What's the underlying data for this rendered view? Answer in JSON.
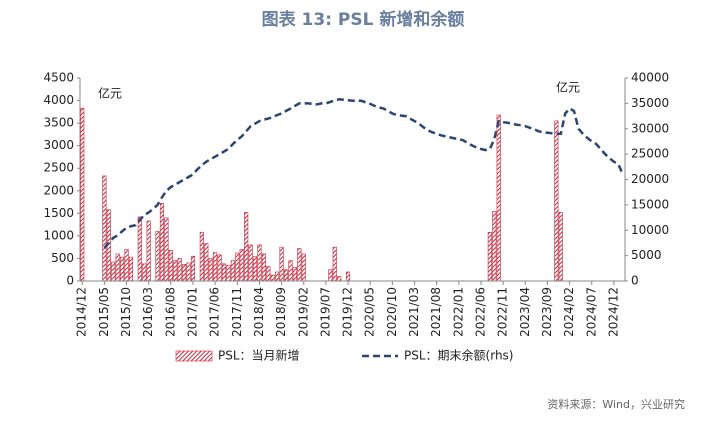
{
  "chart_data": {
    "type": "bar_line",
    "title": "图表 13: PSL 新增和余额",
    "source": "资料来源：Wind，兴业研究",
    "annotations": [
      "亿元",
      "亿元"
    ],
    "categories": [
      "2014/12",
      null,
      null,
      null,
      null,
      "2015/05",
      null,
      null,
      null,
      null,
      "2015/10",
      null,
      null,
      null,
      null,
      "2016/03",
      null,
      null,
      null,
      null,
      "2016/08",
      null,
      null,
      null,
      null,
      "2017/01",
      null,
      null,
      null,
      null,
      "2017/06",
      null,
      null,
      null,
      null,
      "2017/11",
      null,
      null,
      null,
      null,
      "2018/04",
      null,
      null,
      null,
      null,
      "2018/09",
      null,
      null,
      null,
      null,
      "2019/02",
      null,
      null,
      null,
      null,
      "2019/07",
      null,
      null,
      null,
      null,
      "2019/12",
      null,
      null,
      null,
      null,
      "2020/05",
      null,
      null,
      null,
      null,
      "2020/10",
      null,
      null,
      null,
      null,
      "2021/03",
      null,
      null,
      null,
      null,
      "2021/08",
      null,
      null,
      null,
      null,
      "2022/01",
      null,
      null,
      null,
      null,
      "2022/06",
      null,
      null,
      null,
      null,
      "2022/11",
      null,
      null,
      null,
      null,
      "2023/04",
      null,
      null,
      null,
      null,
      "2023/09",
      null,
      null,
      null,
      null,
      "2024/02",
      null,
      null,
      null,
      null,
      "2024/07",
      null,
      null,
      null,
      null,
      "2024/12",
      null,
      null
    ],
    "series": [
      {
        "name": "PSL：当月新增",
        "type": "bar",
        "color": "#c8283c",
        "values": [
          3830,
          0,
          0,
          0,
          0,
          2330,
          1580,
          420,
          600,
          530,
          700,
          530,
          0,
          1420,
          380,
          1330,
          0,
          1100,
          1720,
          1400,
          680,
          450,
          500,
          370,
          400,
          550,
          0,
          1080,
          830,
          500,
          630,
          580,
          380,
          350,
          450,
          620,
          700,
          1520,
          800,
          540,
          800,
          600,
          320,
          130,
          200,
          750,
          250,
          450,
          300,
          720,
          600,
          0,
          0,
          0,
          0,
          0,
          250,
          750,
          100,
          0,
          200,
          0,
          0,
          0,
          0,
          0,
          0,
          0,
          0,
          0,
          0,
          0,
          0,
          0,
          0,
          0,
          0,
          0,
          0,
          0,
          0,
          0,
          0,
          0,
          0,
          0,
          0,
          0,
          0,
          0,
          0,
          0,
          1080,
          1540,
          3680,
          0,
          0,
          0,
          0,
          0,
          0,
          0,
          0,
          0,
          0,
          0,
          0,
          3550,
          1520,
          0,
          0,
          0,
          0,
          0,
          0,
          0,
          0,
          0,
          0,
          0,
          0,
          0,
          0
        ]
      },
      {
        "name": "PSL：期末余额(rhs)",
        "type": "line",
        "axis": "y2",
        "color": "#2c4674",
        "values": [
          null,
          null,
          null,
          null,
          null,
          6500,
          7500,
          8500,
          9000,
          9800,
          10500,
          10800,
          11000,
          12000,
          13000,
          13500,
          14200,
          15000,
          16500,
          17800,
          18500,
          19000,
          19500,
          20000,
          20500,
          21000,
          22000,
          22800,
          23500,
          24000,
          24500,
          25000,
          25500,
          26000,
          27000,
          27800,
          28500,
          29500,
          30500,
          31000,
          31500,
          31800,
          32000,
          32300,
          32700,
          33000,
          33500,
          34000,
          34500,
          35000,
          35000,
          35000,
          34900,
          34800,
          35000,
          35000,
          35300,
          35600,
          35800,
          35700,
          35600,
          35500,
          35500,
          35500,
          35200,
          34900,
          34500,
          34200,
          34000,
          33500,
          33000,
          32700,
          32600,
          32500,
          32000,
          31500,
          31000,
          30300,
          29700,
          29300,
          29000,
          28700,
          28500,
          28300,
          28100,
          28000,
          27700,
          27200,
          26700,
          26300,
          26000,
          25800,
          26000,
          28000,
          31500,
          31300,
          31200,
          31000,
          30800,
          30700,
          30500,
          30200,
          29900,
          29500,
          29300,
          29200,
          29100,
          29000,
          29000,
          33000,
          34000,
          33500,
          30000,
          29000,
          28200,
          27500,
          27000,
          26000,
          25000,
          24200,
          23500,
          23000,
          21000
        ]
      }
    ],
    "ylim": [
      0,
      4500
    ],
    "yticks": [
      0,
      500,
      1000,
      1500,
      2000,
      2500,
      3000,
      3500,
      4000,
      4500
    ],
    "y2lim": [
      0,
      40000
    ],
    "y2ticks": [
      0,
      5000,
      10000,
      15000,
      20000,
      25000,
      30000,
      35000,
      40000
    ],
    "legend": "bottom"
  }
}
